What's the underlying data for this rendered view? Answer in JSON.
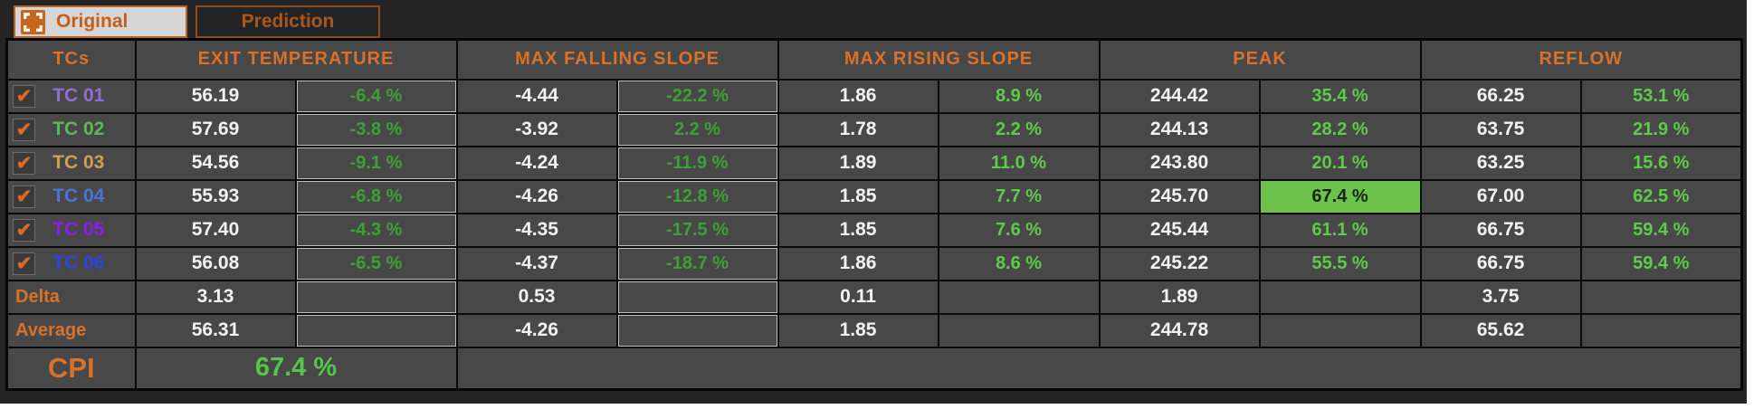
{
  "tab_bar": {
    "tabs": [
      {
        "label": "Original",
        "active": true
      },
      {
        "label": "Prediction",
        "active": false
      }
    ]
  },
  "colors": {
    "accent_orange": "#d9712a",
    "value_white": "#f2f2f2",
    "pct_green_dark_bg": "#5ecb4a",
    "pct_green_gray_bg": "#3da135",
    "pct_gray_cell_bg": "#9c9c9c",
    "highlight_green_bg": "#6cc24a",
    "cell_bg": "#484848",
    "panel_bg": "#242424"
  },
  "table": {
    "corner_header": "TCs",
    "sections": [
      {
        "name": "EXIT TEMPERATURE",
        "pct_style": "gray"
      },
      {
        "name": "MAX FALLING SLOPE",
        "pct_style": "gray"
      },
      {
        "name": "MAX RISING SLOPE",
        "pct_style": "dark"
      },
      {
        "name": "PEAK",
        "pct_style": "dark"
      },
      {
        "name": "REFLOW",
        "pct_style": "dark"
      }
    ],
    "tc_rows": [
      {
        "label": "TC 01",
        "checked": true,
        "label_color": "#8d6fd6",
        "cells": [
          {
            "value": "56.19",
            "pct": "-6.4 %"
          },
          {
            "value": "-4.44",
            "pct": "-22.2 %"
          },
          {
            "value": "1.86",
            "pct": "8.9 %"
          },
          {
            "value": "244.42",
            "pct": "35.4 %"
          },
          {
            "value": "66.25",
            "pct": "53.1 %"
          }
        ]
      },
      {
        "label": "TC 02",
        "checked": true,
        "label_color": "#5cb85c",
        "cells": [
          {
            "value": "57.69",
            "pct": "-3.8 %"
          },
          {
            "value": "-3.92",
            "pct": "2.2 %"
          },
          {
            "value": "1.78",
            "pct": "2.2 %"
          },
          {
            "value": "244.13",
            "pct": "28.2 %"
          },
          {
            "value": "63.75",
            "pct": "21.9 %"
          }
        ]
      },
      {
        "label": "TC 03",
        "checked": true,
        "label_color": "#d0a050",
        "cells": [
          {
            "value": "54.56",
            "pct": "-9.1 %"
          },
          {
            "value": "-4.24",
            "pct": "-11.9 %"
          },
          {
            "value": "1.89",
            "pct": "11.0 %"
          },
          {
            "value": "243.80",
            "pct": "20.1 %"
          },
          {
            "value": "63.25",
            "pct": "15.6 %"
          }
        ]
      },
      {
        "label": "TC 04",
        "checked": true,
        "label_color": "#4a74d8",
        "cells": [
          {
            "value": "55.93",
            "pct": "-6.8 %"
          },
          {
            "value": "-4.26",
            "pct": "-12.8 %"
          },
          {
            "value": "1.85",
            "pct": "7.7 %"
          },
          {
            "value": "245.70",
            "pct": "67.4 %",
            "highlight": true
          },
          {
            "value": "67.00",
            "pct": "62.5 %"
          }
        ]
      },
      {
        "label": "TC 05",
        "checked": true,
        "label_color": "#8b1fe8",
        "cells": [
          {
            "value": "57.40",
            "pct": "-4.3 %"
          },
          {
            "value": "-4.35",
            "pct": "-17.5 %"
          },
          {
            "value": "1.85",
            "pct": "7.6 %"
          },
          {
            "value": "245.44",
            "pct": "61.1 %"
          },
          {
            "value": "66.75",
            "pct": "59.4 %"
          }
        ]
      },
      {
        "label": "TC 06",
        "checked": true,
        "label_color": "#2f45d8",
        "cells": [
          {
            "value": "56.08",
            "pct": "-6.5 %"
          },
          {
            "value": "-4.37",
            "pct": "-18.7 %"
          },
          {
            "value": "1.86",
            "pct": "8.6 %"
          },
          {
            "value": "245.22",
            "pct": "55.5 %"
          },
          {
            "value": "66.75",
            "pct": "59.4 %"
          }
        ]
      }
    ],
    "summary_rows": [
      {
        "label": "Delta",
        "values": [
          "3.13",
          "0.53",
          "0.11",
          "1.89",
          "3.75"
        ]
      },
      {
        "label": "Average",
        "values": [
          "56.31",
          "-4.26",
          "1.85",
          "244.78",
          "65.62"
        ]
      }
    ],
    "cpi_row": {
      "label": "CPI",
      "value": "67.4 %"
    },
    "checkmark_glyph": "✔"
  }
}
